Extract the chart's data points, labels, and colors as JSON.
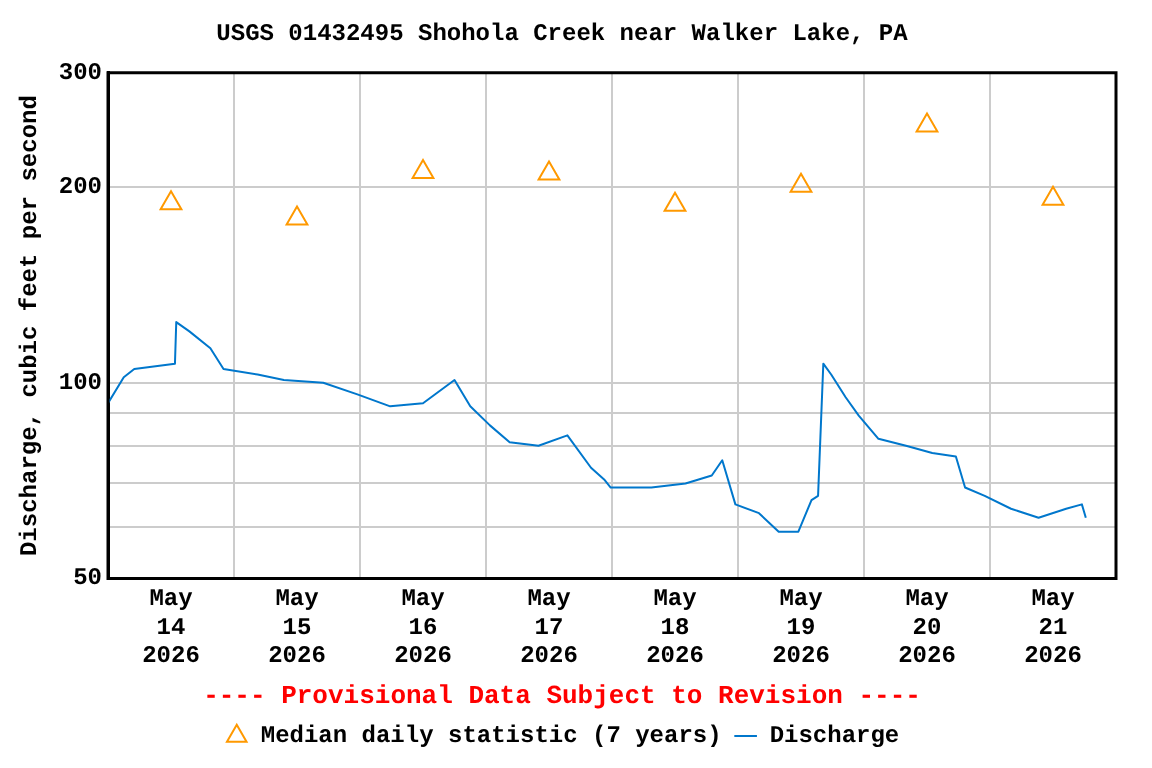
{
  "chart_data": {
    "type": "line",
    "title": "USGS 01432495 Shohola Creek near Walker Lake, PA",
    "ylabel": "Discharge, cubic feet per second",
    "annotations": [
      "---- Provisional Data Subject to Revision ----"
    ],
    "log": "y",
    "grid": true,
    "legend": "bottom",
    "xlim": [
      "2026-05-14T00:00",
      "2026-05-22T00:00"
    ],
    "xticks": [
      {
        "value": "2026-05-14T00:00",
        "label": null
      },
      {
        "value": "2026-05-14T12:00",
        "label": "May 14 2026"
      },
      {
        "value": "2026-05-15T00:00",
        "label": null
      },
      {
        "value": "2026-05-15T12:00",
        "label": "May 15 2026"
      },
      {
        "value": "2026-05-16T00:00",
        "label": null
      },
      {
        "value": "2026-05-16T12:00",
        "label": "May 16 2026"
      },
      {
        "value": "2026-05-17T00:00",
        "label": null
      },
      {
        "value": "2026-05-17T12:00",
        "label": "May 17 2026"
      },
      {
        "value": "2026-05-18T00:00",
        "label": null
      },
      {
        "value": "2026-05-18T12:00",
        "label": "May 18 2026"
      },
      {
        "value": "2026-05-19T00:00",
        "label": null
      },
      {
        "value": "2026-05-19T12:00",
        "label": "May 19 2026"
      },
      {
        "value": "2026-05-20T00:00",
        "label": null
      },
      {
        "value": "2026-05-20T12:00",
        "label": "May 20 2026"
      },
      {
        "value": "2026-05-21T00:00",
        "label": null
      },
      {
        "value": "2026-05-21T12:00",
        "label": "May 21 2026"
      },
      {
        "value": "2026-05-22T00:00",
        "label": null
      }
    ],
    "ylim": [
      50,
      300
    ],
    "yticks": [
      50,
      {
        "value": 60,
        "label": null
      },
      {
        "value": 70,
        "label": null
      },
      {
        "value": 80,
        "label": null
      },
      {
        "value": 90,
        "label": null
      },
      100,
      200,
      300
    ],
    "series": [
      {
        "name": "Median daily statistic (7 years)",
        "type": "scatter",
        "marker": "triangle",
        "color": "#ff9900",
        "x": [
          "2026-05-14T12:00",
          "2026-05-15T12:00",
          "2026-05-16T12:00",
          "2026-05-17T12:00",
          "2026-05-18T12:00",
          "2026-05-19T12:00",
          "2026-05-20T12:00",
          "2026-05-21T12:00"
        ],
        "values": [
          189,
          179,
          211,
          210,
          188,
          201,
          249,
          192
        ]
      },
      {
        "name": "Discharge",
        "type": "line",
        "marker": "none",
        "line_style": "solid",
        "color": "#0077cc",
        "x": [
          "2026-05-14T00:00",
          "2026-05-14T03:00",
          "2026-05-14T05:00",
          "2026-05-14T12:45",
          "2026-05-14T13:00",
          "2026-05-14T15:30",
          "2026-05-14T19:30",
          "2026-05-14T22:00",
          "2026-05-15T04:30",
          "2026-05-15T09:30",
          "2026-05-15T17:00",
          "2026-05-15T23:30",
          "2026-05-16T05:45",
          "2026-05-16T12:00",
          "2026-05-16T18:00",
          "2026-05-16T21:00",
          "2026-05-17T00:45",
          "2026-05-17T04:30",
          "2026-05-17T10:00",
          "2026-05-17T15:30",
          "2026-05-17T20:00",
          "2026-05-17T22:30",
          "2026-05-17T23:45",
          "2026-05-18T07:30",
          "2026-05-18T14:00",
          "2026-05-18T19:00",
          "2026-05-18T21:00",
          "2026-05-18T23:30",
          "2026-05-19T04:00",
          "2026-05-19T07:45",
          "2026-05-19T11:30",
          "2026-05-19T14:00",
          "2026-05-19T15:15",
          "2026-05-19T16:15",
          "2026-05-19T17:45",
          "2026-05-19T20:30",
          "2026-05-19T23:00",
          "2026-05-20T02:45",
          "2026-05-20T08:00",
          "2026-05-20T13:00",
          "2026-05-20T17:30",
          "2026-05-20T19:15",
          "2026-05-20T23:00",
          "2026-05-21T04:00",
          "2026-05-21T09:15",
          "2026-05-21T14:30",
          "2026-05-21T17:30",
          "2026-05-21T18:15"
        ],
        "values": [
          93,
          102,
          105,
          107,
          124,
          120,
          113,
          105,
          103,
          101,
          100,
          96,
          92,
          93,
          101,
          92,
          86,
          81,
          80,
          83,
          74,
          71,
          69,
          69,
          70,
          72,
          76,
          65,
          63,
          59,
          59,
          66,
          67,
          107,
          103,
          95,
          89,
          82,
          80,
          78,
          77,
          69,
          67,
          64,
          62,
          64,
          65,
          62
        ]
      }
    ]
  }
}
